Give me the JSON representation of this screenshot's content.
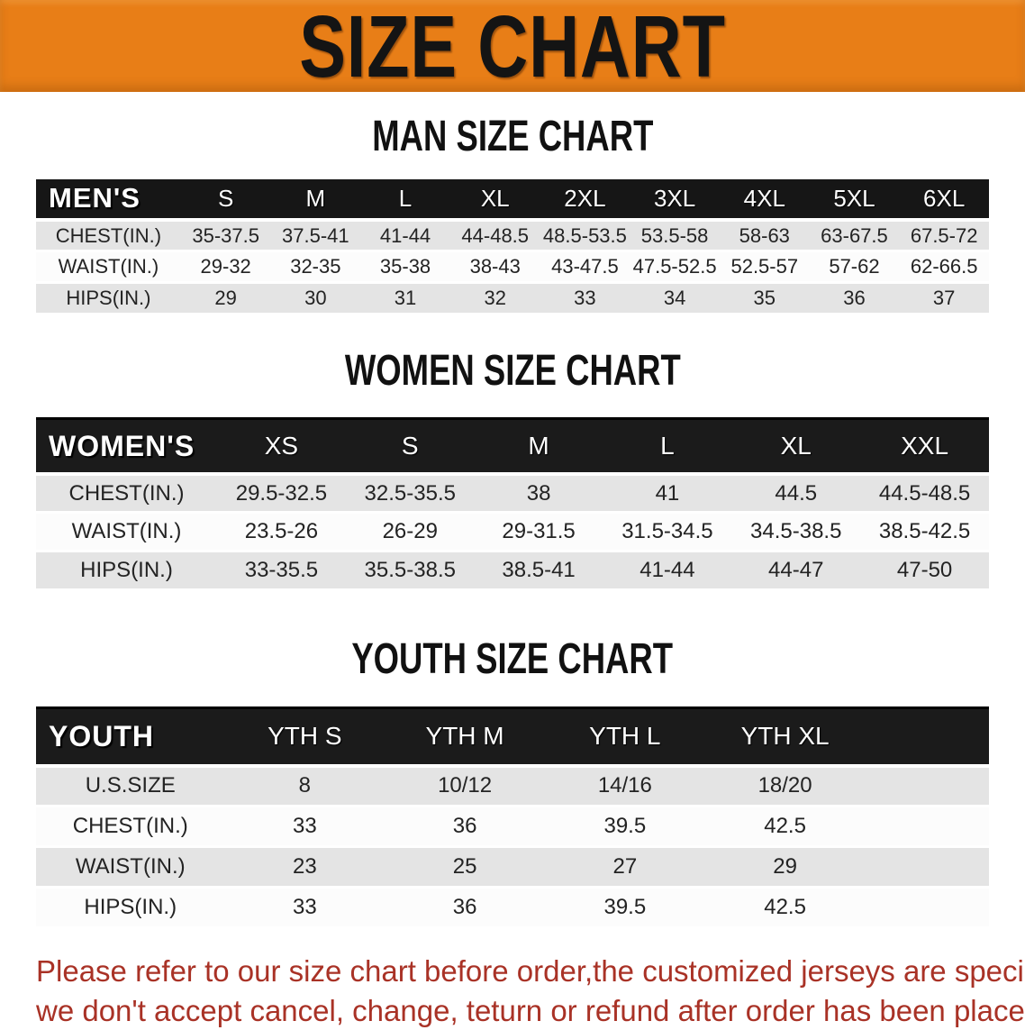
{
  "banner": {
    "title": "SIZE CHART"
  },
  "colors": {
    "banner_bg": "#E87E17",
    "header_bar": "#161616",
    "row_alt": "#E4E4E4",
    "notice_text": "#A93226"
  },
  "sections": [
    {
      "id": "men",
      "heading": "MAN SIZE CHART",
      "table": {
        "header": [
          "MEN'S",
          "S",
          "M",
          "L",
          "XL",
          "2XL",
          "3XL",
          "4XL",
          "5XL",
          "6XL"
        ],
        "rows": [
          {
            "label": "CHEST(IN.)",
            "values": [
              "35-37.5",
              "37.5-41",
              "41-44",
              "44-48.5",
              "48.5-53.5",
              "53.5-58",
              "58-63",
              "63-67.5",
              "67.5-72"
            ]
          },
          {
            "label": "WAIST(IN.)",
            "values": [
              "29-32",
              "32-35",
              "35-38",
              "38-43",
              "43-47.5",
              "47.5-52.5",
              "52.5-57",
              "57-62",
              "62-66.5"
            ]
          },
          {
            "label": "HIPS(IN.)",
            "values": [
              "29",
              "30",
              "31",
              "32",
              "33",
              "34",
              "35",
              "36",
              "37"
            ]
          }
        ]
      }
    },
    {
      "id": "women",
      "heading": "WOMEN SIZE CHART",
      "table": {
        "header": [
          "WOMEN'S",
          "XS",
          "S",
          "M",
          "L",
          "XL",
          "XXL"
        ],
        "rows": [
          {
            "label": "CHEST(IN.)",
            "values": [
              "29.5-32.5",
              "32.5-35.5",
              "38",
              "41",
              "44.5",
              "44.5-48.5"
            ]
          },
          {
            "label": "WAIST(IN.)",
            "values": [
              "23.5-26",
              "26-29",
              "29-31.5",
              "31.5-34.5",
              "34.5-38.5",
              "38.5-42.5"
            ]
          },
          {
            "label": "HIPS(IN.)",
            "values": [
              "33-35.5",
              "35.5-38.5",
              "38.5-41",
              "41-44",
              "44-47",
              "47-50"
            ]
          }
        ]
      }
    },
    {
      "id": "youth",
      "heading": "YOUTH SIZE CHART",
      "table": {
        "header": [
          "YOUTH",
          "YTH S",
          "YTH M",
          "YTH L",
          "YTH XL"
        ],
        "rows": [
          {
            "label": "U.S.SIZE",
            "values": [
              "8",
              "10/12",
              "14/16",
              "18/20"
            ]
          },
          {
            "label": "CHEST(IN.)",
            "values": [
              "33",
              "36",
              "39.5",
              "42.5"
            ]
          },
          {
            "label": "WAIST(IN.)",
            "values": [
              "23",
              "25",
              "27",
              "29"
            ]
          },
          {
            "label": "HIPS(IN.)",
            "values": [
              "33",
              "36",
              "39.5",
              "42.5"
            ]
          }
        ]
      }
    }
  ],
  "notice": {
    "lines": [
      "Please refer to our size chart before order,the customized jerseys are special products,",
      "we don't accept cancel, change, teturn or refund after order has been placed!"
    ]
  }
}
